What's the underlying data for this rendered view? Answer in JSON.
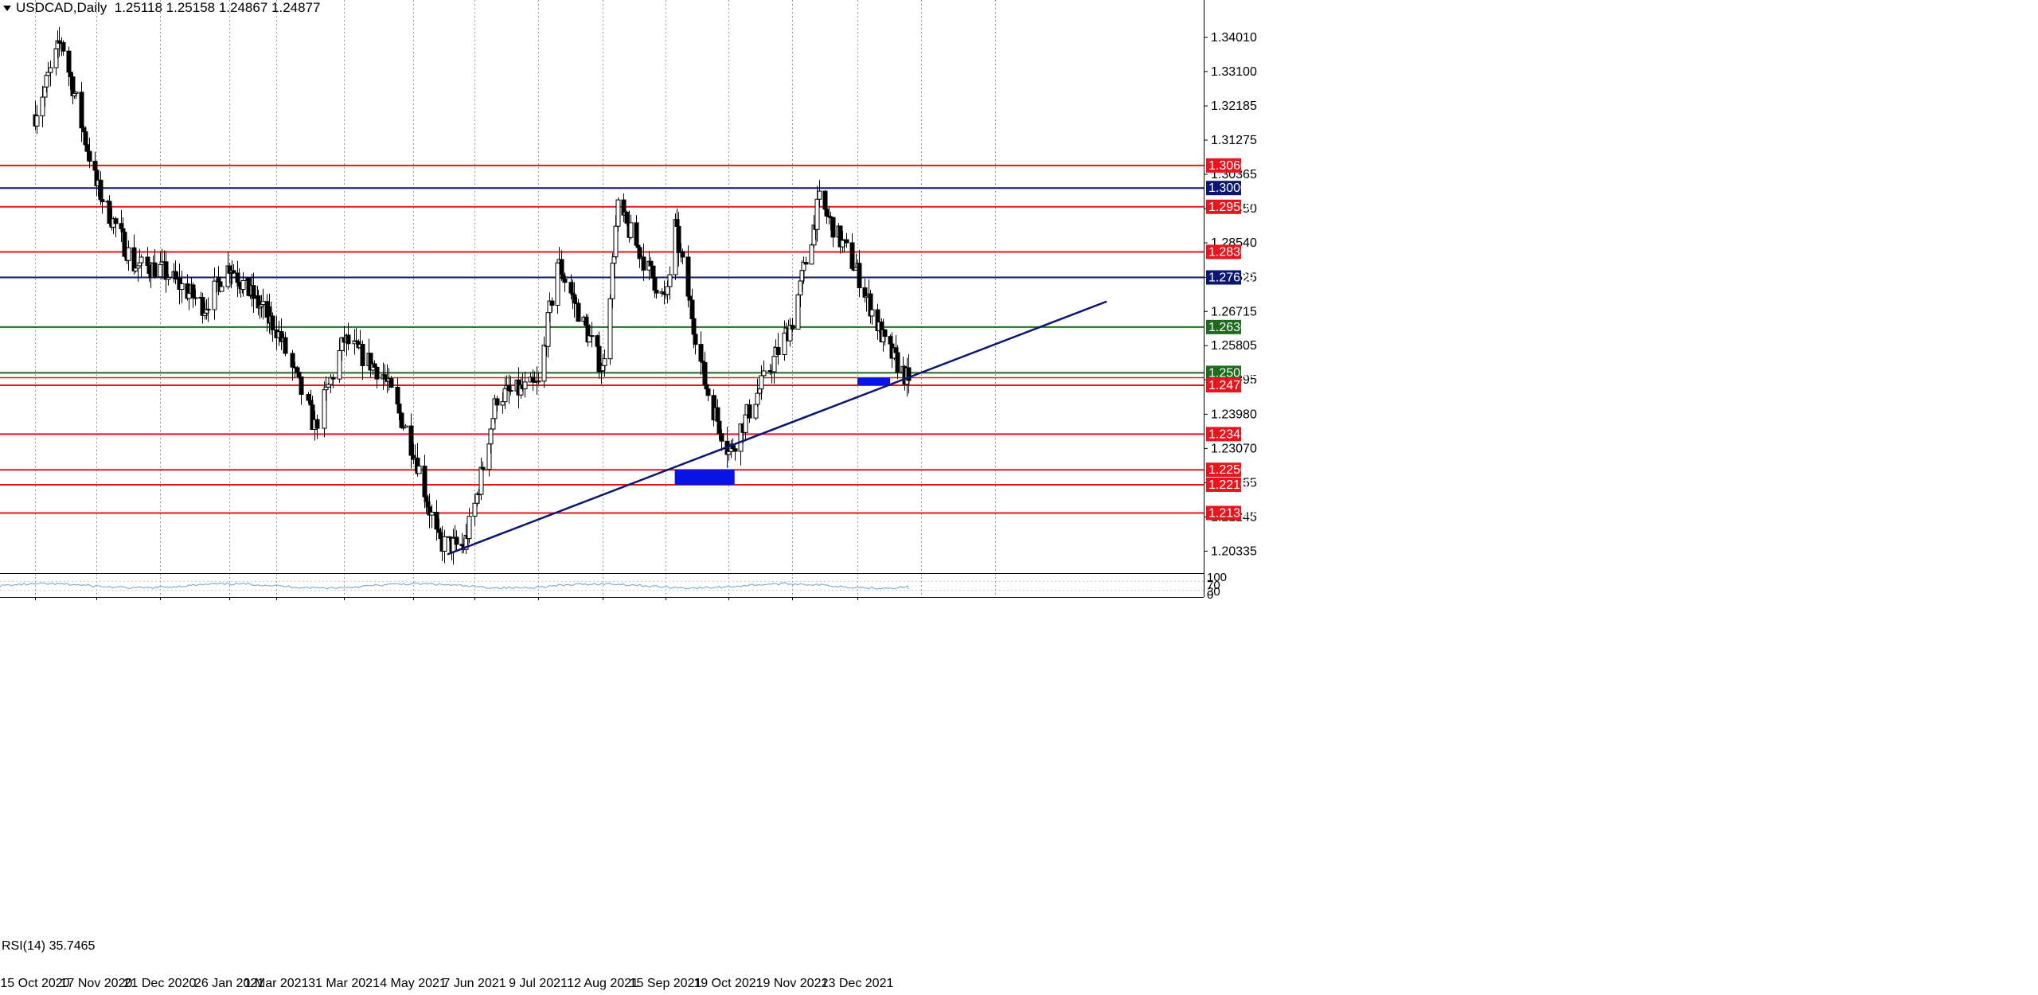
{
  "header": {
    "symbol": "USDCAD,Daily",
    "ohlc": "1.25118 1.25158 1.24867 1.24877"
  },
  "rsi": {
    "label": "RSI(14) 35.7465",
    "period": 14,
    "value": 35.7465,
    "scale_labels": [
      "100",
      "70",
      "30",
      "0"
    ]
  },
  "colors": {
    "support_resistance": "#e8141e",
    "round_level": "#0b1670",
    "green_level": "#1e6b1e",
    "zone": "#0a14e6",
    "trendline": "#0b1670",
    "rsi_line": "#7fb0d8"
  },
  "chart_data": {
    "type": "candlestick",
    "title": "",
    "xlabel": "",
    "ylabel": "",
    "ylim": [
      1.1975,
      1.3475
    ],
    "x_tick_labels": [
      "15 Oct 2020",
      "17 Nov 2020",
      "21 Dec 2020",
      "26 Jan 2021",
      "1 Mar 2021",
      "31 Mar 2021",
      "4 May 2021",
      "7 Jun 2021",
      "9 Jul 2021",
      "12 Aug 2021",
      "15 Sep 2021",
      "19 Oct 2021",
      "19 Nov 2021",
      "23 Dec 2021"
    ],
    "y_tick_labels": [
      "1.34010",
      "1.33100",
      "1.32185",
      "1.31275",
      "1.30365",
      "1.29450",
      "1.28540",
      "1.27625",
      "1.26715",
      "1.25805",
      "1.24895",
      "1.23980",
      "1.23070",
      "1.22155",
      "1.21245",
      "1.20335"
    ],
    "y_tick_values": [
      1.3401,
      1.331,
      1.32185,
      1.31275,
      1.30365,
      1.2945,
      1.2854,
      1.27625,
      1.26715,
      1.25805,
      1.24895,
      1.2398,
      1.2307,
      1.22155,
      1.21245,
      1.20335
    ],
    "levels": [
      {
        "label": "1.30600",
        "value": 1.306,
        "kind": "red"
      },
      {
        "label": "1.30000",
        "value": 1.3,
        "kind": "blue"
      },
      {
        "label": "1.29500",
        "value": 1.295,
        "kind": "red"
      },
      {
        "label": "1.28300",
        "value": 1.283,
        "kind": "red"
      },
      {
        "label": "1.27620",
        "value": 1.2762,
        "kind": "blue"
      },
      {
        "label": "1.26300",
        "value": 1.263,
        "kind": "green"
      },
      {
        "label": "1.25080",
        "value": 1.2508,
        "kind": "green"
      },
      {
        "label": "1.24750",
        "value": 1.2475,
        "kind": "red"
      },
      {
        "label": "1.23450",
        "value": 1.2345,
        "kind": "red"
      },
      {
        "label": "1.22500",
        "value": 1.225,
        "kind": "red"
      },
      {
        "label": "1.22102",
        "value": 1.22102,
        "kind": "red"
      },
      {
        "label": "1.21350",
        "value": 1.2135,
        "kind": "red"
      }
    ],
    "minor_level": {
      "value": 1.2495,
      "kind": "red"
    },
    "zones": [
      {
        "start": "2021-09-20",
        "end": "2021-10-22",
        "top": 1.225,
        "bottom": 1.221
      },
      {
        "start": "2021-12-23",
        "end": "2022-01-10",
        "top": 1.2495,
        "bottom": 1.2475
      }
    ],
    "trendline": {
      "start_date": "2021-05-23",
      "start_value": 1.2025,
      "end_date": "2022-05-09",
      "end_value": 1.2698
    },
    "key_points": [
      {
        "date": "2020-10-15",
        "close": 1.3195
      },
      {
        "date": "2020-10-29",
        "high": 1.3395
      },
      {
        "date": "2020-11-17",
        "close": 1.3005
      },
      {
        "date": "2020-12-07",
        "close": 1.2795
      },
      {
        "date": "2020-12-21",
        "close": 1.2785
      },
      {
        "date": "2021-01-13",
        "close": 1.2685
      },
      {
        "date": "2021-01-26",
        "close": 1.2795
      },
      {
        "date": "2021-03-01",
        "close": 1.2625
      },
      {
        "date": "2021-03-18",
        "low": 1.2365
      },
      {
        "date": "2021-03-31",
        "close": 1.2595
      },
      {
        "date": "2021-04-19",
        "close": 1.2505
      },
      {
        "date": "2021-05-04",
        "close": 1.2305
      },
      {
        "date": "2021-05-18",
        "low": 1.2055
      },
      {
        "date": "2021-06-01",
        "close": 1.2045
      },
      {
        "date": "2021-06-07",
        "close": 1.2155
      },
      {
        "date": "2021-06-18",
        "close": 1.2445
      },
      {
        "date": "2021-07-09",
        "close": 1.2475
      },
      {
        "date": "2021-07-19",
        "high": 1.2805
      },
      {
        "date": "2021-08-12",
        "close": 1.2515
      },
      {
        "date": "2021-08-20",
        "high": 1.2945
      },
      {
        "date": "2021-09-15",
        "close": 1.2695
      },
      {
        "date": "2021-09-20",
        "high": 1.2895
      },
      {
        "date": "2021-10-06",
        "close": 1.2485
      },
      {
        "date": "2021-10-19",
        "low": 1.2295
      },
      {
        "date": "2021-11-19",
        "close": 1.2645
      },
      {
        "date": "2021-12-03",
        "high": 1.2965
      },
      {
        "date": "2021-12-23",
        "close": 1.2775
      },
      {
        "date": "2022-01-07",
        "close": 1.2585
      },
      {
        "date": "2022-01-20",
        "close": 1.2488
      }
    ],
    "last_close": 1.24877,
    "grid": "vertical-dotted",
    "legend": "none"
  }
}
